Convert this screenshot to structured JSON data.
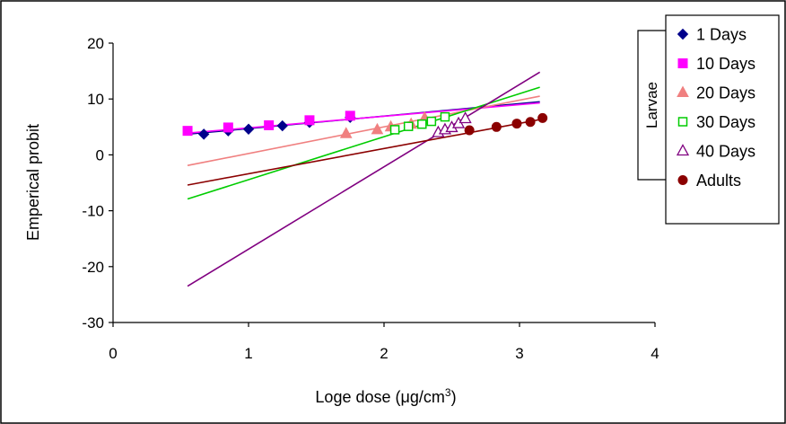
{
  "chart_data": {
    "type": "scatter",
    "xlabel_prefix": "Loge dose (",
    "xlabel_unit": "μg/cm",
    "xlabel_sup": "3",
    "xlabel_suffix": ")",
    "ylabel": "Emperical probit",
    "xlim": [
      0,
      4
    ],
    "ylim": [
      -30,
      20
    ],
    "x_ticks": [
      0,
      1,
      2,
      3,
      4
    ],
    "y_ticks": [
      -30,
      -20,
      -10,
      0,
      10,
      20
    ],
    "grid": false,
    "legend_position": "right",
    "bracket_label": "Larvae",
    "series": [
      {
        "name": "1 Days",
        "marker": "diamond-filled",
        "color": "#00008B",
        "points": [
          [
            0.67,
            3.7
          ],
          [
            0.85,
            4.3
          ],
          [
            1.0,
            4.6
          ],
          [
            1.25,
            5.2
          ],
          [
            1.45,
            5.8
          ],
          [
            1.75,
            6.7
          ]
        ],
        "trend": [
          [
            0.55,
            3.7
          ],
          [
            3.15,
            9.5
          ]
        ]
      },
      {
        "name": "10 Days",
        "marker": "square-filled",
        "color": "#FF00FF",
        "points": [
          [
            0.55,
            4.3
          ],
          [
            0.85,
            4.9
          ],
          [
            1.15,
            5.3
          ],
          [
            1.45,
            6.2
          ],
          [
            1.75,
            7.0
          ]
        ],
        "trend": [
          [
            0.55,
            3.9
          ],
          [
            3.15,
            9.3
          ]
        ]
      },
      {
        "name": "20 Days",
        "marker": "triangle-filled",
        "color": "#F08080",
        "points": [
          [
            1.72,
            3.8
          ],
          [
            1.95,
            4.5
          ],
          [
            2.05,
            5.0
          ],
          [
            2.2,
            5.5
          ],
          [
            2.3,
            6.6
          ]
        ],
        "trend": [
          [
            0.55,
            -1.9
          ],
          [
            3.15,
            10.5
          ]
        ]
      },
      {
        "name": "30 Days",
        "marker": "square-open",
        "color": "#00CC00",
        "points": [
          [
            2.08,
            4.5
          ],
          [
            2.18,
            5.1
          ],
          [
            2.28,
            5.5
          ],
          [
            2.35,
            6.0
          ],
          [
            2.45,
            6.8
          ]
        ],
        "trend": [
          [
            0.55,
            -7.9
          ],
          [
            3.15,
            12.1
          ]
        ]
      },
      {
        "name": "40 Days",
        "marker": "triangle-open",
        "color": "#800080",
        "points": [
          [
            2.4,
            4.0
          ],
          [
            2.45,
            4.5
          ],
          [
            2.5,
            4.9
          ],
          [
            2.55,
            5.6
          ],
          [
            2.6,
            6.5
          ]
        ],
        "trend": [
          [
            0.55,
            -23.5
          ],
          [
            3.15,
            14.8
          ]
        ]
      },
      {
        "name": "Adults",
        "marker": "circle-filled",
        "color": "#8B0000",
        "points": [
          [
            2.63,
            4.4
          ],
          [
            2.83,
            5.0
          ],
          [
            2.98,
            5.6
          ],
          [
            3.08,
            5.9
          ],
          [
            3.17,
            6.6
          ]
        ],
        "trend": [
          [
            0.55,
            -5.4
          ],
          [
            3.17,
            6.4
          ]
        ]
      }
    ]
  }
}
